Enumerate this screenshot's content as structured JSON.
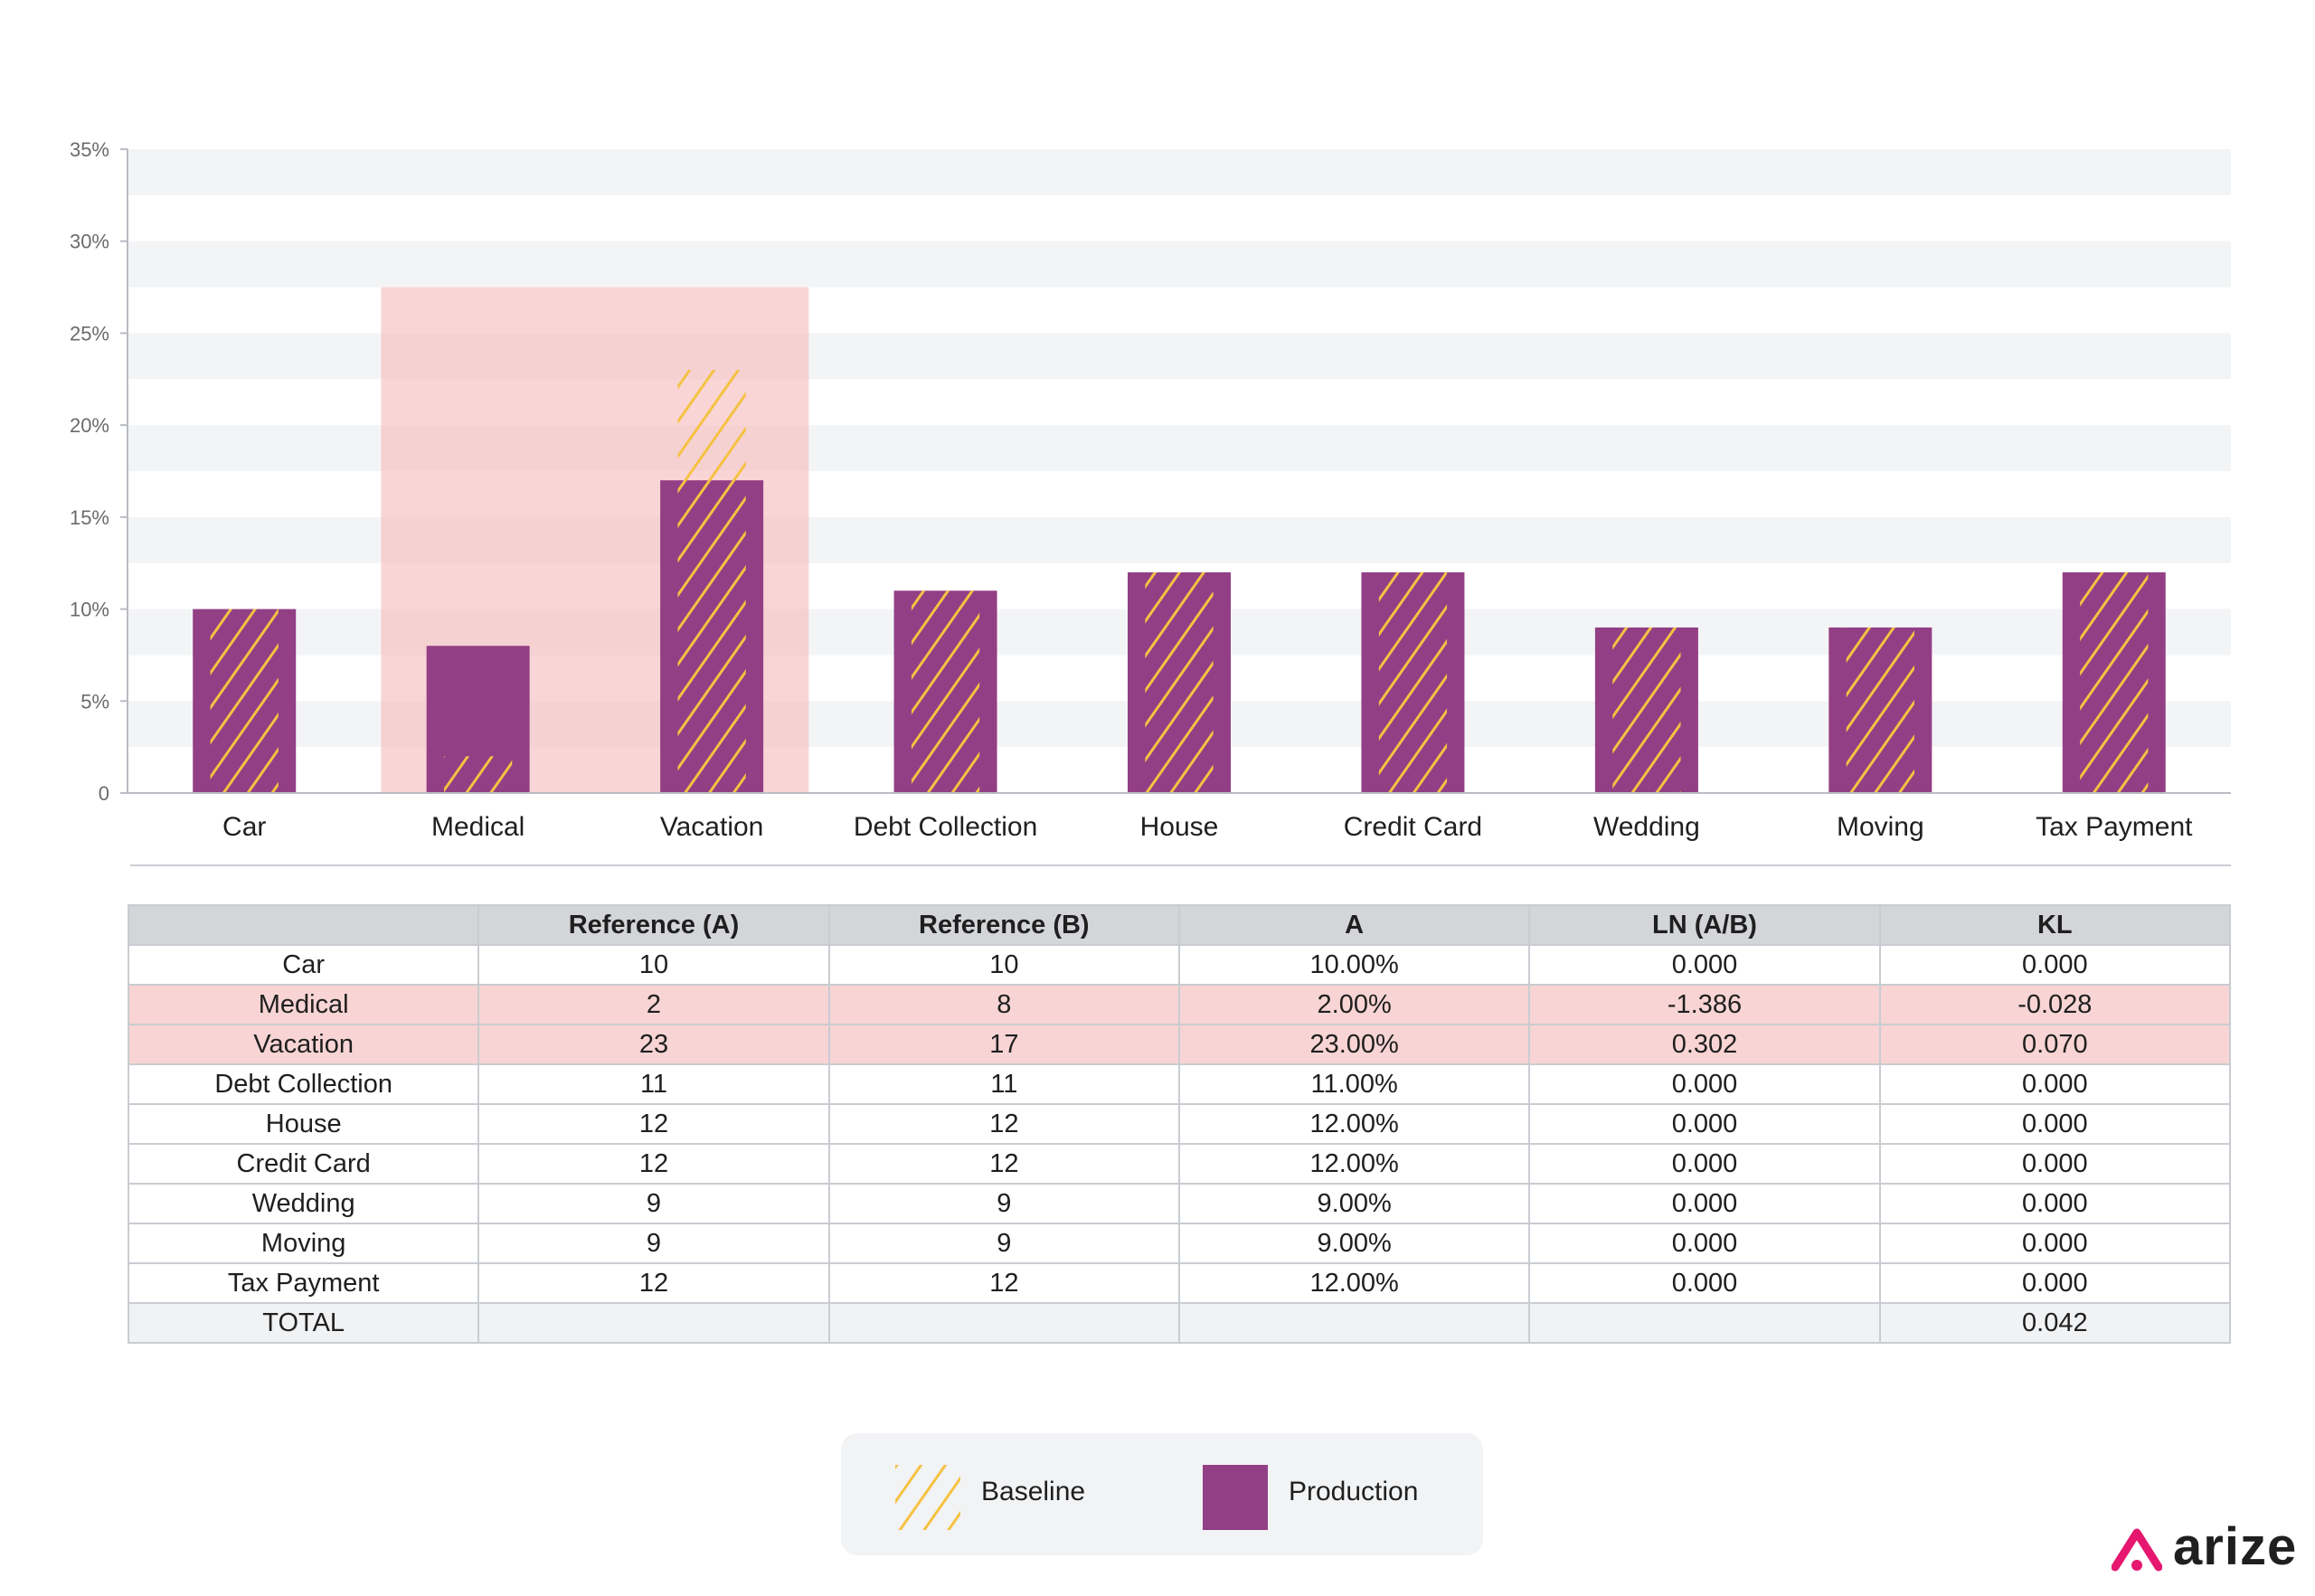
{
  "colors": {
    "production": "#933f85",
    "baseline": "#f5c242",
    "highlight_region": "#f5bcbc",
    "grid_band": "#f3f4f6",
    "brand_accent": "#e6176f"
  },
  "chart_data": {
    "type": "bar",
    "categories": [
      "Car",
      "Medical",
      "Vacation",
      "Debt Collection",
      "House",
      "Credit Card",
      "Wedding",
      "Moving",
      "Tax Payment"
    ],
    "series": [
      {
        "name": "Baseline",
        "values": [
          10,
          2,
          23,
          11,
          12,
          12,
          9,
          9,
          12
        ]
      },
      {
        "name": "Production",
        "values": [
          10,
          8,
          17,
          11,
          12,
          12,
          9,
          9,
          12
        ]
      }
    ],
    "y_ticks": [
      "0",
      "5%",
      "10%",
      "15%",
      "20%",
      "25%",
      "30%",
      "35%"
    ],
    "ylim": [
      0,
      35
    ],
    "y_unit": "%",
    "highlighted_categories": [
      "Medical",
      "Vacation"
    ],
    "highlight_top_value": 27.5,
    "grid": "horizontal bands",
    "legend_position": "bottom-center"
  },
  "table": {
    "headers": [
      "",
      "Reference (A)",
      "Reference (B)",
      "A",
      "LN (A/B)",
      "KL"
    ],
    "rows": [
      {
        "cells": [
          "Car",
          "10",
          "10",
          "10.00%",
          "0.000",
          "0.000"
        ],
        "highlight": false
      },
      {
        "cells": [
          "Medical",
          "2",
          "8",
          "2.00%",
          "-1.386",
          "-0.028"
        ],
        "highlight": true
      },
      {
        "cells": [
          "Vacation",
          "23",
          "17",
          "23.00%",
          "0.302",
          "0.070"
        ],
        "highlight": true
      },
      {
        "cells": [
          "Debt Collection",
          "11",
          "11",
          "11.00%",
          "0.000",
          "0.000"
        ],
        "highlight": false
      },
      {
        "cells": [
          "House",
          "12",
          "12",
          "12.00%",
          "0.000",
          "0.000"
        ],
        "highlight": false
      },
      {
        "cells": [
          "Credit Card",
          "12",
          "12",
          "12.00%",
          "0.000",
          "0.000"
        ],
        "highlight": false
      },
      {
        "cells": [
          "Wedding",
          "9",
          "9",
          "9.00%",
          "0.000",
          "0.000"
        ],
        "highlight": false
      },
      {
        "cells": [
          "Moving",
          "9",
          "9",
          "9.00%",
          "0.000",
          "0.000"
        ],
        "highlight": false
      },
      {
        "cells": [
          "Tax Payment",
          "12",
          "12",
          "12.00%",
          "0.000",
          "0.000"
        ],
        "highlight": false
      }
    ],
    "total_row": [
      "TOTAL",
      "",
      "",
      "",
      "",
      "0.042"
    ]
  },
  "legend": {
    "baseline_label": "Baseline",
    "production_label": "Production"
  },
  "brand": {
    "name": "arize",
    "logo_icon": "arize-caret-logo-icon"
  }
}
